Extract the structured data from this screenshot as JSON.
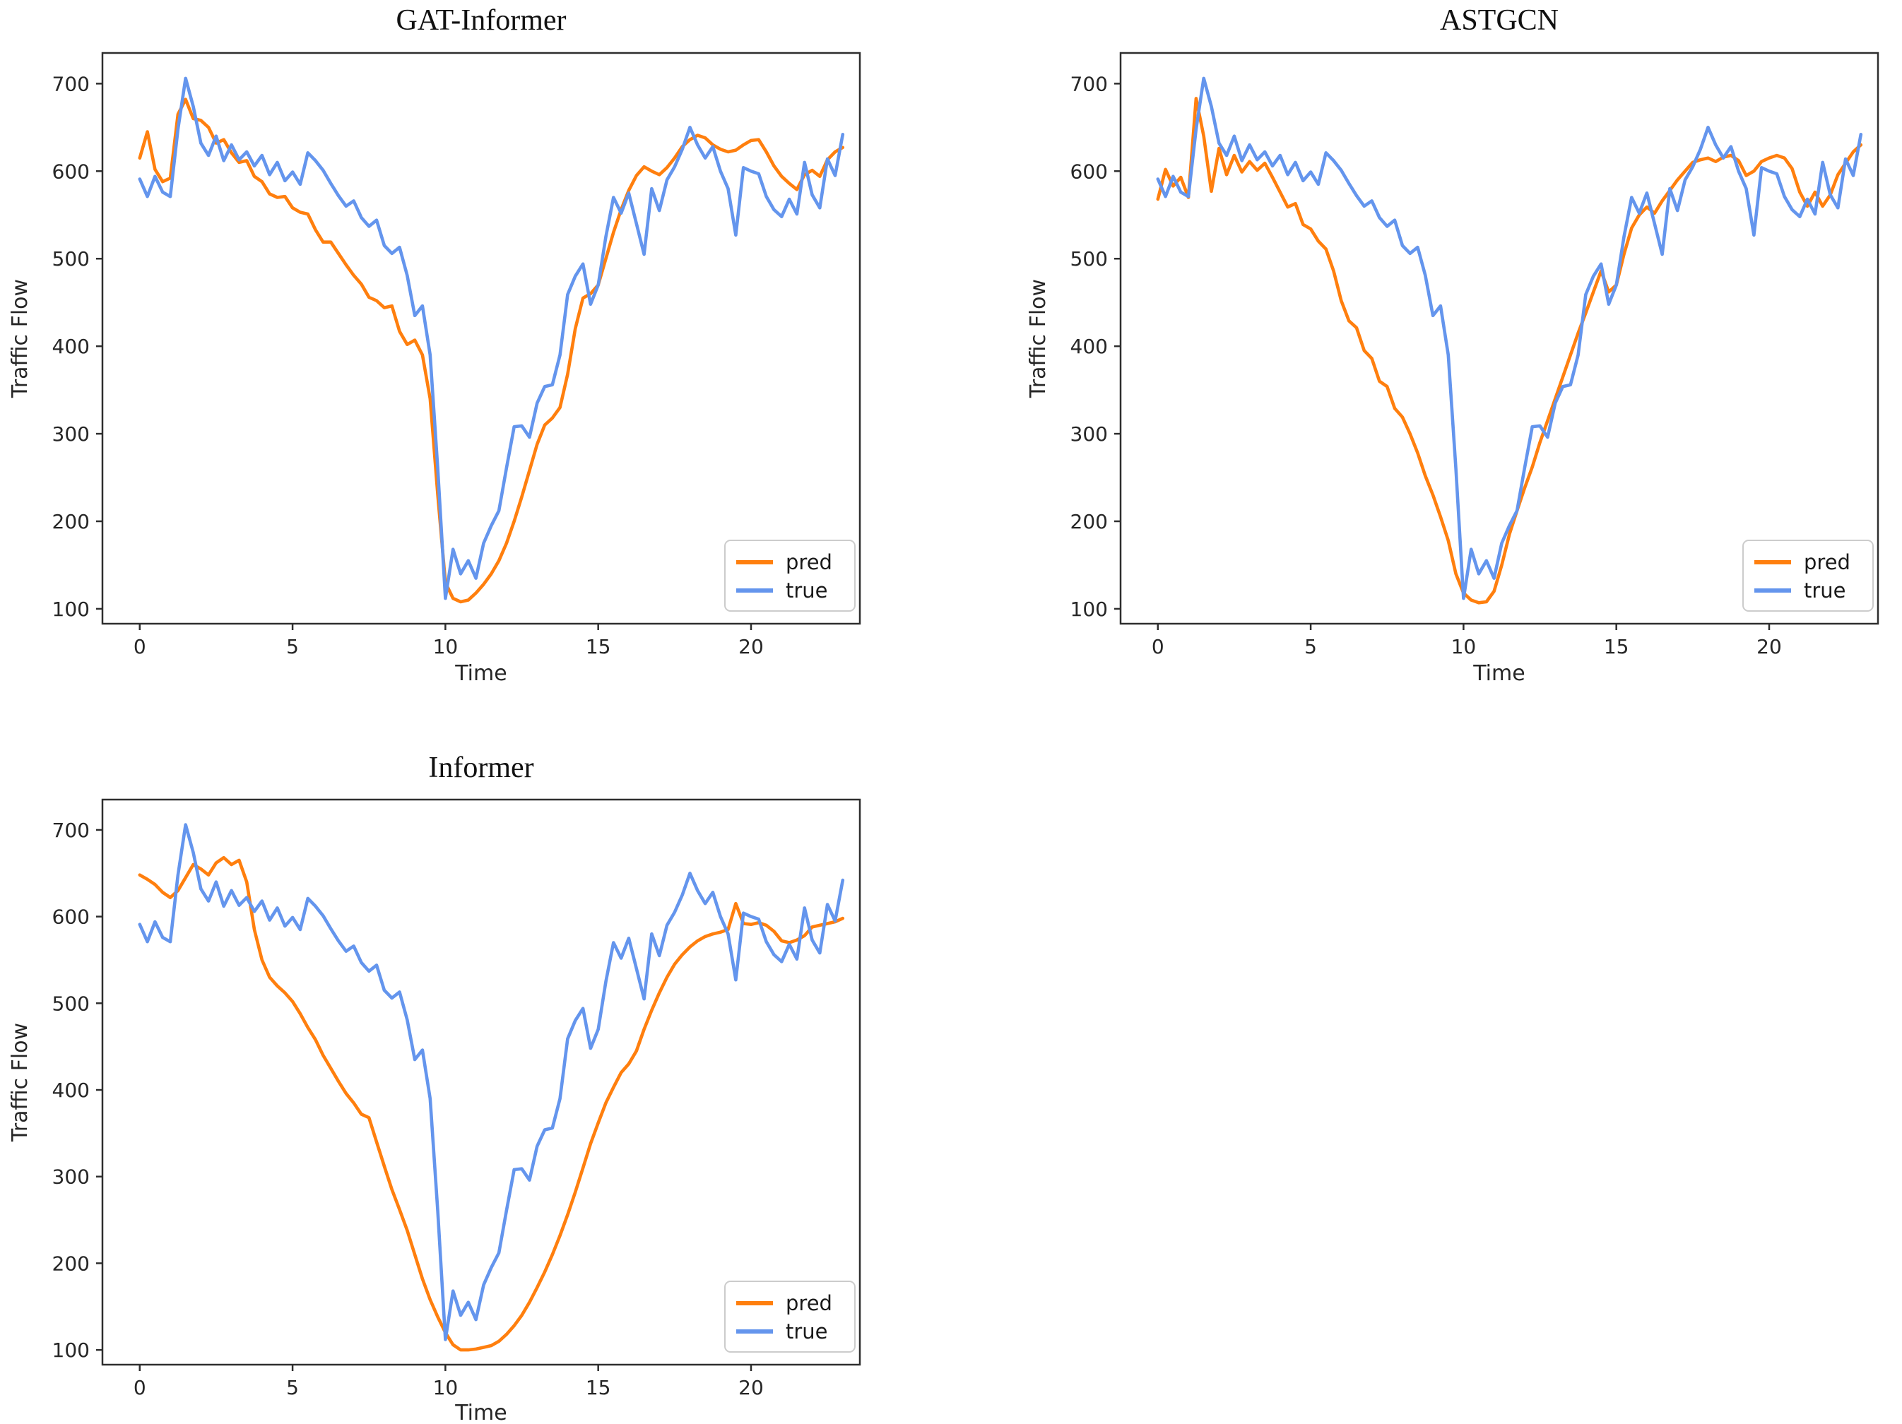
{
  "figure": {
    "background": "#ffffff"
  },
  "colors": {
    "pred": "#ff7f0e",
    "true": "#6495ed"
  },
  "chart_data": [
    {
      "type": "line",
      "title": "GAT-Informer",
      "xlabel": "Time",
      "ylabel": "Traffic Flow",
      "xticks": [
        0,
        5,
        10,
        15,
        20
      ],
      "yticks": [
        100,
        200,
        300,
        400,
        500,
        600,
        700
      ],
      "xlim": [
        -1.22,
        23.56
      ],
      "ylim": [
        83,
        735
      ],
      "x_start": 0,
      "x_step": 0.25,
      "legend": [
        "pred",
        "true"
      ],
      "legend_position": "lower right",
      "grid": false,
      "series": [
        {
          "name": "pred",
          "color_key": "pred",
          "values": [
            615,
            645,
            602,
            588,
            592,
            665,
            682,
            660,
            658,
            650,
            632,
            636,
            621,
            610,
            612,
            594,
            588,
            574,
            570,
            571,
            558,
            553,
            551,
            533,
            519,
            519,
            506,
            493,
            481,
            471,
            456,
            452,
            444,
            446,
            417,
            402,
            407,
            390,
            340,
            230,
            130,
            112,
            108,
            110,
            118,
            128,
            140,
            155,
            175,
            200,
            228,
            258,
            288,
            310,
            318,
            330,
            368,
            420,
            455,
            460,
            470,
            500,
            530,
            556,
            578,
            595,
            605,
            600,
            596,
            604,
            615,
            628,
            636,
            641,
            638,
            630,
            625,
            622,
            624,
            630,
            635,
            636,
            622,
            606,
            594,
            586,
            579,
            596,
            601,
            594,
            613,
            622,
            627
          ]
        },
        {
          "name": "true",
          "color_key": "true",
          "values": [
            591,
            571,
            594,
            576,
            571,
            648,
            706,
            674,
            632,
            618,
            640,
            612,
            630,
            613,
            622,
            606,
            618,
            596,
            610,
            589,
            599,
            585,
            621,
            612,
            601,
            586,
            572,
            560,
            566,
            547,
            537,
            544,
            515,
            506,
            513,
            481,
            435,
            446,
            390,
            260,
            112,
            168,
            140,
            155,
            135,
            175,
            195,
            212,
            261,
            308,
            309,
            296,
            335,
            354,
            356,
            390,
            459,
            480,
            494,
            448,
            470,
            525,
            570,
            552,
            575,
            540,
            505,
            580,
            555,
            590,
            605,
            625,
            650,
            630,
            615,
            628,
            600,
            580,
            527,
            604,
            600,
            597,
            571,
            556,
            548,
            568,
            551,
            610,
            573,
            558,
            614,
            595,
            642
          ]
        }
      ]
    },
    {
      "type": "line",
      "title": "ASTGCN",
      "xlabel": "Time",
      "ylabel": "Traffic Flow",
      "xticks": [
        0,
        5,
        10,
        15,
        20
      ],
      "yticks": [
        100,
        200,
        300,
        400,
        500,
        600,
        700
      ],
      "xlim": [
        -1.22,
        23.56
      ],
      "ylim": [
        83,
        735
      ],
      "x_start": 0,
      "x_step": 0.25,
      "legend": [
        "pred",
        "true"
      ],
      "legend_position": "lower right",
      "grid": false,
      "series": [
        {
          "name": "pred",
          "color_key": "pred",
          "values": [
            568,
            602,
            583,
            593,
            570,
            683,
            640,
            577,
            626,
            596,
            618,
            599,
            611,
            601,
            609,
            593,
            576,
            559,
            563,
            539,
            534,
            520,
            511,
            486,
            452,
            429,
            421,
            395,
            386,
            360,
            354,
            329,
            319,
            300,
            278,
            252,
            230,
            205,
            178,
            140,
            118,
            110,
            107,
            108,
            120,
            150,
            185,
            212,
            238,
            262,
            290,
            315,
            340,
            365,
            390,
            415,
            438,
            462,
            486,
            462,
            470,
            505,
            535,
            550,
            559,
            552,
            566,
            578,
            590,
            600,
            610,
            613,
            615,
            611,
            616,
            618,
            612,
            595,
            600,
            611,
            615,
            618,
            615,
            603,
            576,
            560,
            576,
            560,
            573,
            596,
            609,
            622,
            630
          ]
        },
        {
          "name": "true",
          "color_key": "true",
          "values": [
            591,
            571,
            594,
            576,
            571,
            648,
            706,
            674,
            632,
            618,
            640,
            612,
            630,
            613,
            622,
            606,
            618,
            596,
            610,
            589,
            599,
            585,
            621,
            612,
            601,
            586,
            572,
            560,
            566,
            547,
            537,
            544,
            515,
            506,
            513,
            481,
            435,
            446,
            390,
            260,
            112,
            168,
            140,
            155,
            135,
            175,
            195,
            212,
            261,
            308,
            309,
            296,
            335,
            354,
            356,
            390,
            459,
            480,
            494,
            448,
            470,
            525,
            570,
            552,
            575,
            540,
            505,
            580,
            555,
            590,
            605,
            625,
            650,
            630,
            615,
            628,
            600,
            580,
            527,
            604,
            600,
            597,
            571,
            556,
            548,
            568,
            551,
            610,
            573,
            558,
            614,
            595,
            642
          ]
        }
      ]
    },
    {
      "type": "line",
      "title": "Informer",
      "xlabel": "Time",
      "ylabel": "Traffic Flow",
      "xticks": [
        0,
        5,
        10,
        15,
        20
      ],
      "yticks": [
        100,
        200,
        300,
        400,
        500,
        600,
        700
      ],
      "xlim": [
        -1.22,
        23.56
      ],
      "ylim": [
        83,
        735
      ],
      "x_start": 0,
      "x_step": 0.25,
      "legend": [
        "pred",
        "true"
      ],
      "legend_position": "lower right",
      "grid": false,
      "series": [
        {
          "name": "pred",
          "color_key": "pred",
          "values": [
            648,
            643,
            637,
            628,
            622,
            630,
            645,
            660,
            655,
            648,
            662,
            668,
            660,
            665,
            640,
            585,
            550,
            530,
            520,
            512,
            502,
            488,
            472,
            458,
            440,
            425,
            410,
            396,
            385,
            372,
            368,
            340,
            312,
            285,
            262,
            238,
            210,
            182,
            158,
            138,
            120,
            106,
            100,
            100,
            101,
            103,
            105,
            110,
            118,
            128,
            140,
            155,
            172,
            190,
            210,
            232,
            256,
            282,
            310,
            338,
            362,
            385,
            403,
            420,
            430,
            445,
            470,
            492,
            512,
            530,
            545,
            556,
            565,
            572,
            577,
            580,
            582,
            585,
            615,
            592,
            591,
            593,
            590,
            583,
            572,
            570,
            573,
            578,
            588,
            590,
            592,
            594,
            598
          ]
        },
        {
          "name": "true",
          "color_key": "true",
          "values": [
            591,
            571,
            594,
            576,
            571,
            648,
            706,
            674,
            632,
            618,
            640,
            612,
            630,
            613,
            622,
            606,
            618,
            596,
            610,
            589,
            599,
            585,
            621,
            612,
            601,
            586,
            572,
            560,
            566,
            547,
            537,
            544,
            515,
            506,
            513,
            481,
            435,
            446,
            390,
            260,
            112,
            168,
            140,
            155,
            135,
            175,
            195,
            212,
            261,
            308,
            309,
            296,
            335,
            354,
            356,
            390,
            459,
            480,
            494,
            448,
            470,
            525,
            570,
            552,
            575,
            540,
            505,
            580,
            555,
            590,
            605,
            625,
            650,
            630,
            615,
            628,
            600,
            580,
            527,
            604,
            600,
            597,
            571,
            556,
            548,
            568,
            551,
            610,
            573,
            558,
            614,
            595,
            642
          ]
        }
      ]
    }
  ]
}
